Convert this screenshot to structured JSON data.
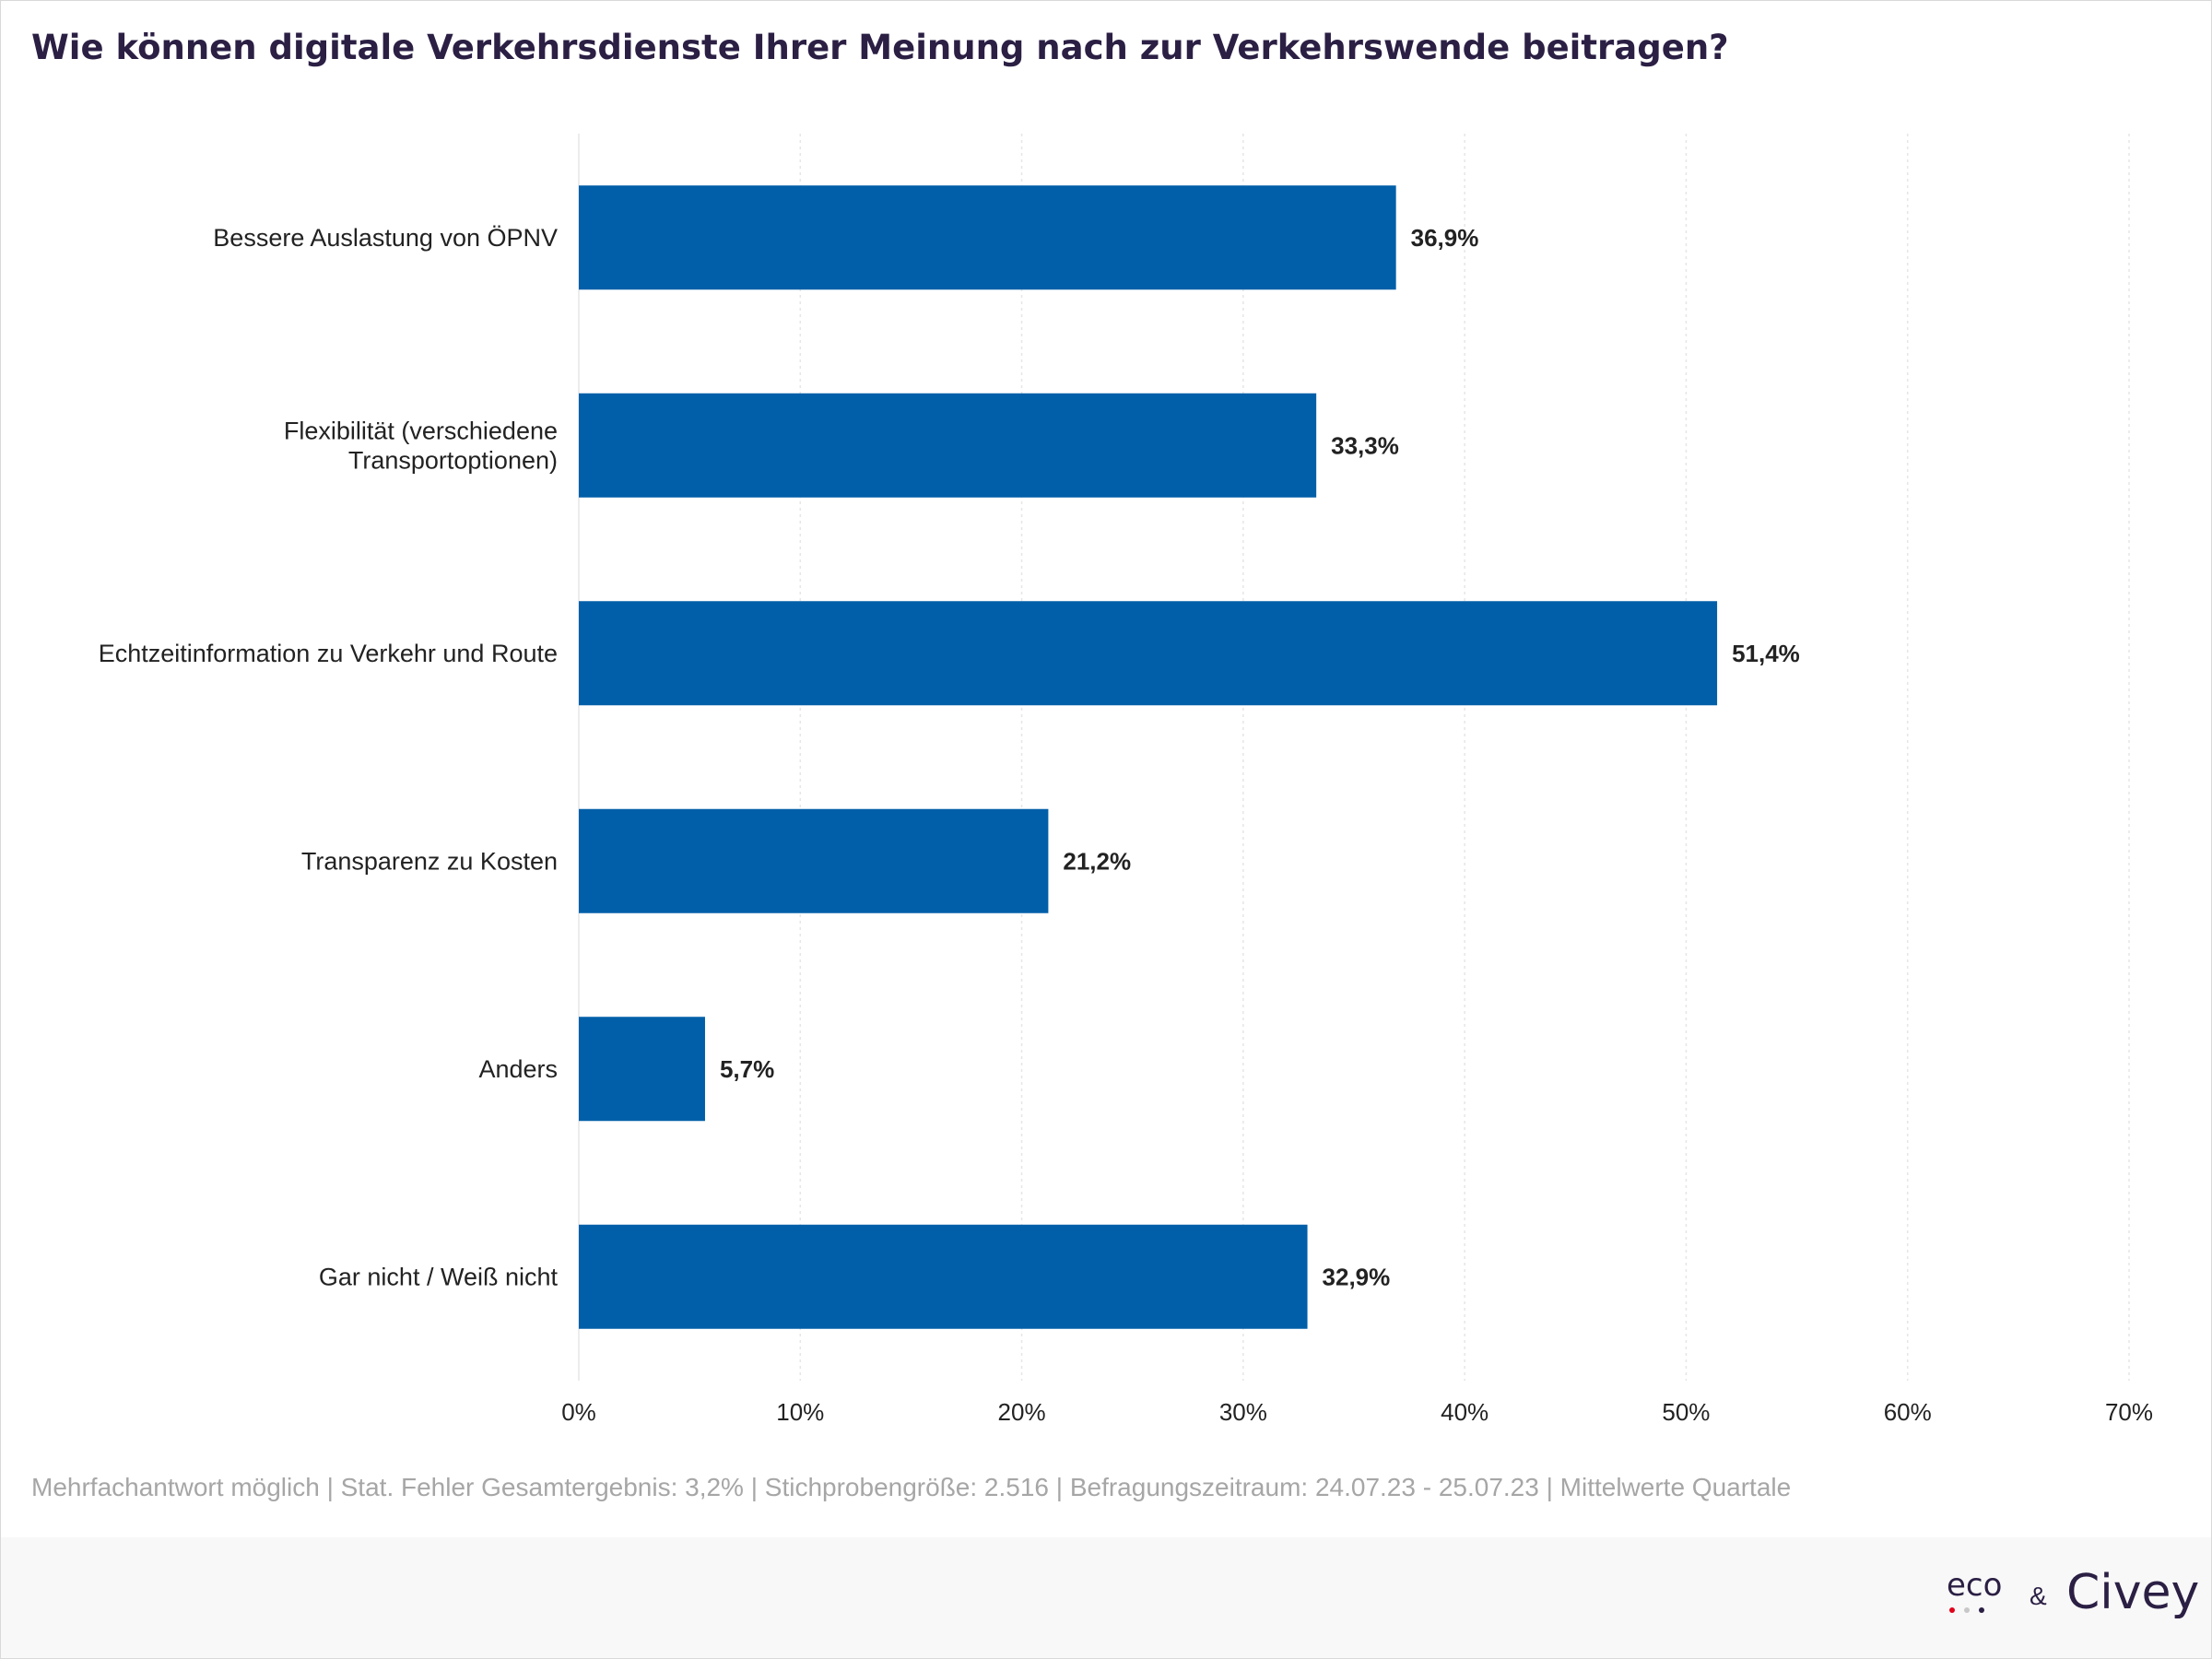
{
  "title": "Wie können digitale Verkehrsdienste Ihrer Meinung nach zur Verkehrswende beitragen?",
  "footnote": "Mehrfachantwort möglich | Stat. Fehler Gesamtergebnis: 3,2% | Stichprobengröße: 2.516 | Befragungszeitraum: 24.07.23 - 25.07.23 | Mittelwerte Quartale",
  "logos": {
    "eco": "eco",
    "amp": "&",
    "civey": "Civey"
  },
  "colors": {
    "bar": "#005fa8",
    "grid": "#e6e6e6",
    "label": "#222222",
    "title": "#2b1f44"
  },
  "chart_data": {
    "type": "bar",
    "orientation": "horizontal",
    "categories": [
      "Bessere Auslastung von ÖPNV",
      "Flexibilität (verschiedene Transportoptionen)",
      "Echtzeitinformation zu Verkehr und Route",
      "Transparenz zu Kosten",
      "Anders",
      "Gar nicht / Weiß nicht"
    ],
    "category_lines": [
      [
        "Bessere Auslastung von ÖPNV"
      ],
      [
        "Flexibilität (verschiedene",
        "Transportoptionen)"
      ],
      [
        "Echtzeitinformation zu Verkehr und Route"
      ],
      [
        "Transparenz zu Kosten"
      ],
      [
        "Anders"
      ],
      [
        "Gar nicht / Weiß nicht"
      ]
    ],
    "values": [
      36.9,
      33.3,
      51.4,
      21.2,
      5.7,
      32.9
    ],
    "value_labels": [
      "36,9%",
      "33,3%",
      "51,4%",
      "21,2%",
      "5,7%",
      "32,9%"
    ],
    "xlim": [
      0,
      70
    ],
    "xticks": [
      0,
      10,
      20,
      30,
      40,
      50,
      60,
      70
    ],
    "xtick_labels": [
      "0%",
      "10%",
      "20%",
      "30%",
      "40%",
      "50%",
      "60%",
      "70%"
    ],
    "grid": "vertical dotted",
    "legend": "none"
  }
}
